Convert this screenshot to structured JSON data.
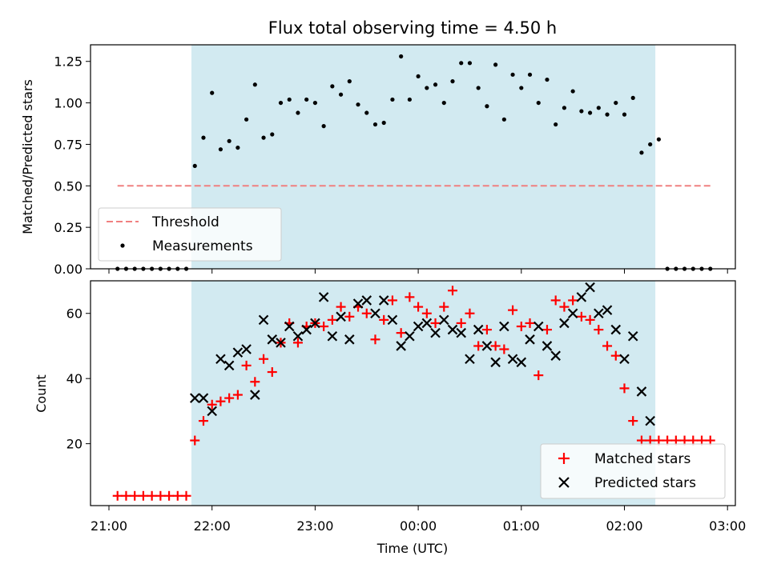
{
  "title": "Flux total observing time = 4.50 h",
  "colors": {
    "shade": "#add8e6",
    "threshold": "#f08080",
    "measurements": "#000000",
    "matched": "#ff0000",
    "predicted": "#000000"
  },
  "chart_data": [
    {
      "type": "scatter",
      "ylabel": "Matched/Predicted stars",
      "ylim": [
        0,
        1.35
      ],
      "yticks": [
        "0.00",
        "0.25",
        "0.50",
        "0.75",
        "1.00",
        "1.25"
      ],
      "ytick_values": [
        0,
        0.25,
        0.5,
        0.75,
        1.0,
        1.25
      ],
      "legend": {
        "placement": "lower-left",
        "entries": [
          "Threshold",
          "Measurements"
        ]
      },
      "threshold": {
        "name": "Threshold",
        "value": 0.5,
        "x_start": "21:05",
        "x_end": "02:50"
      },
      "shaded_span": [
        "21:48",
        "02:18"
      ],
      "series": [
        {
          "name": "Measurements",
          "x": [
            "21:05",
            "21:10",
            "21:15",
            "21:20",
            "21:25",
            "21:30",
            "21:35",
            "21:40",
            "21:45",
            "21:50",
            "21:55",
            "22:00",
            "22:05",
            "22:10",
            "22:15",
            "22:20",
            "22:25",
            "22:30",
            "22:35",
            "22:40",
            "22:45",
            "22:50",
            "22:55",
            "23:00",
            "23:05",
            "23:10",
            "23:15",
            "23:20",
            "23:25",
            "23:30",
            "23:35",
            "23:40",
            "23:45",
            "23:50",
            "23:55",
            "00:00",
            "00:05",
            "00:10",
            "00:15",
            "00:20",
            "00:25",
            "00:30",
            "00:35",
            "00:40",
            "00:45",
            "00:50",
            "00:55",
            "01:00",
            "01:05",
            "01:10",
            "01:15",
            "01:20",
            "01:25",
            "01:30",
            "01:35",
            "01:40",
            "01:45",
            "01:50",
            "01:55",
            "02:00",
            "02:05",
            "02:10",
            "02:15",
            "02:20",
            "02:25",
            "02:30",
            "02:35",
            "02:40",
            "02:45",
            "02:50"
          ],
          "y": [
            0,
            0,
            0,
            0,
            0,
            0,
            0,
            0,
            0,
            0.62,
            0.79,
            1.06,
            0.72,
            0.77,
            0.73,
            0.9,
            1.11,
            0.79,
            0.81,
            1.0,
            1.02,
            0.94,
            1.02,
            1.0,
            0.86,
            1.1,
            1.05,
            1.13,
            0.99,
            0.94,
            0.87,
            0.88,
            1.02,
            1.28,
            1.02,
            1.16,
            1.09,
            1.11,
            1.0,
            1.13,
            1.24,
            1.24,
            1.09,
            0.98,
            1.23,
            0.9,
            1.17,
            1.09,
            1.17,
            1.0,
            1.14,
            0.87,
            0.97,
            1.07,
            0.95,
            0.94,
            0.97,
            0.93,
            1.0,
            0.93,
            1.03,
            0.7,
            0.75,
            0.78,
            0,
            0,
            0,
            0,
            0,
            0
          ]
        }
      ]
    },
    {
      "type": "scatter",
      "ylabel": "Count",
      "xlabel": "Time (UTC)",
      "ylim": [
        1,
        70
      ],
      "yticks": [
        "20",
        "40",
        "60"
      ],
      "ytick_values": [
        20,
        40,
        60
      ],
      "xticks": [
        "21:00",
        "22:00",
        "23:00",
        "00:00",
        "01:00",
        "02:00",
        "03:00"
      ],
      "legend": {
        "placement": "lower-right",
        "entries": [
          "Matched stars",
          "Predicted stars"
        ]
      },
      "shaded_span": [
        "21:48",
        "02:18"
      ],
      "series": [
        {
          "name": "Matched stars",
          "marker": "plus",
          "x": [
            "21:05",
            "21:10",
            "21:15",
            "21:20",
            "21:25",
            "21:30",
            "21:35",
            "21:40",
            "21:45",
            "21:50",
            "21:55",
            "22:00",
            "22:05",
            "22:10",
            "22:15",
            "22:20",
            "22:25",
            "22:30",
            "22:35",
            "22:40",
            "22:45",
            "22:50",
            "22:55",
            "23:00",
            "23:05",
            "23:10",
            "23:15",
            "23:20",
            "23:25",
            "23:30",
            "23:35",
            "23:40",
            "23:45",
            "23:50",
            "23:55",
            "00:00",
            "00:05",
            "00:10",
            "00:15",
            "00:20",
            "00:25",
            "00:30",
            "00:35",
            "00:40",
            "00:45",
            "00:50",
            "00:55",
            "01:00",
            "01:05",
            "01:10",
            "01:15",
            "01:20",
            "01:25",
            "01:30",
            "01:35",
            "01:40",
            "01:45",
            "01:50",
            "01:55",
            "02:00",
            "02:05",
            "02:10",
            "02:15",
            "02:20",
            "02:25",
            "02:30",
            "02:35",
            "02:40",
            "02:45",
            "02:50"
          ],
          "y": [
            4,
            4,
            4,
            4,
            4,
            4,
            4,
            4,
            4,
            21,
            27,
            32,
            33,
            34,
            35,
            44,
            39,
            46,
            42,
            51,
            57,
            51,
            56,
            57,
            56,
            58,
            62,
            59,
            62,
            60,
            52,
            58,
            64,
            54,
            65,
            62,
            60,
            57,
            62,
            67,
            57,
            60,
            50,
            55,
            50,
            49,
            61,
            56,
            57,
            41,
            55,
            64,
            62,
            64,
            59,
            58,
            55,
            50,
            47,
            37,
            27,
            21,
            21,
            21,
            21,
            21,
            21,
            21,
            21,
            21
          ]
        },
        {
          "name": "Predicted stars",
          "marker": "x",
          "x": [
            "21:50",
            "21:55",
            "22:00",
            "22:05",
            "22:10",
            "22:15",
            "22:20",
            "22:25",
            "22:30",
            "22:35",
            "22:40",
            "22:45",
            "22:50",
            "22:55",
            "23:00",
            "23:05",
            "23:10",
            "23:15",
            "23:20",
            "23:25",
            "23:30",
            "23:35",
            "23:40",
            "23:45",
            "23:50",
            "23:55",
            "00:00",
            "00:05",
            "00:10",
            "00:15",
            "00:20",
            "00:25",
            "00:30",
            "00:35",
            "00:40",
            "00:45",
            "00:50",
            "00:55",
            "01:00",
            "01:05",
            "01:10",
            "01:15",
            "01:20",
            "01:25",
            "01:30",
            "01:35",
            "01:40",
            "01:45",
            "01:50",
            "01:55",
            "02:00",
            "02:05",
            "02:10",
            "02:15"
          ],
          "y": [
            34,
            34,
            30,
            46,
            44,
            48,
            49,
            35,
            58,
            52,
            51,
            56,
            53,
            55,
            57,
            65,
            53,
            59,
            52,
            63,
            64,
            60,
            64,
            58,
            50,
            53,
            56,
            57,
            54,
            58,
            55,
            54,
            46,
            55,
            50,
            45,
            56,
            46,
            45,
            52,
            56,
            50,
            47,
            57,
            60,
            65,
            68,
            60,
            61,
            55,
            46,
            53,
            36,
            27
          ]
        }
      ]
    }
  ]
}
